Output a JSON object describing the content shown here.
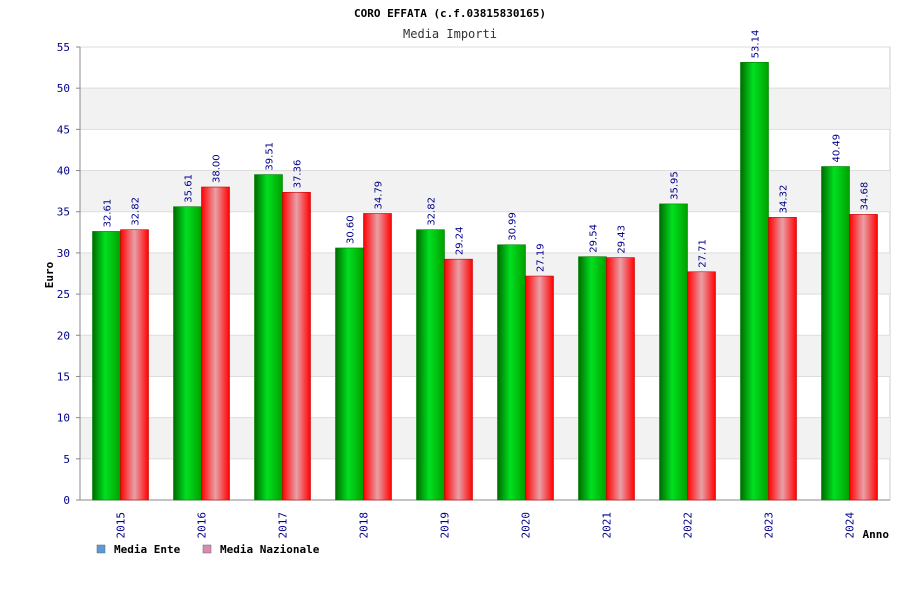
{
  "chart_data": {
    "type": "bar",
    "title": "CORO EFFATA (c.f.03815830165)",
    "subtitle": "Media Importi",
    "ylabel": "Euro",
    "xlabel": "Anno",
    "ylim": [
      0,
      55
    ],
    "ytick_step": 5,
    "grid": true,
    "legend_position": "bottom-left",
    "categories": [
      "2015",
      "2016",
      "2017",
      "2018",
      "2019",
      "2020",
      "2021",
      "2022",
      "2023",
      "2024"
    ],
    "series": [
      {
        "name": "Media Ente",
        "color": "#00b000",
        "legend_color": "#5b9bd5",
        "values": [
          32.61,
          35.61,
          39.51,
          30.6,
          32.82,
          30.99,
          29.54,
          35.95,
          53.14,
          40.49
        ],
        "labels": [
          "32.61",
          "35.61",
          "39.51",
          "30.60",
          "32.82",
          "30.99",
          "29.54",
          "35.95",
          "53.14",
          "40.49"
        ]
      },
      {
        "name": "Media Nazionale",
        "color": "#ff0000",
        "legend_color": "#d98cb3",
        "values": [
          32.82,
          38.0,
          37.36,
          34.79,
          29.24,
          27.19,
          29.43,
          27.71,
          34.32,
          34.68
        ],
        "labels": [
          "32.82",
          "38.00",
          "37.36",
          "34.79",
          "29.24",
          "27.19",
          "29.43",
          "27.71",
          "34.32",
          "34.68"
        ]
      }
    ]
  }
}
